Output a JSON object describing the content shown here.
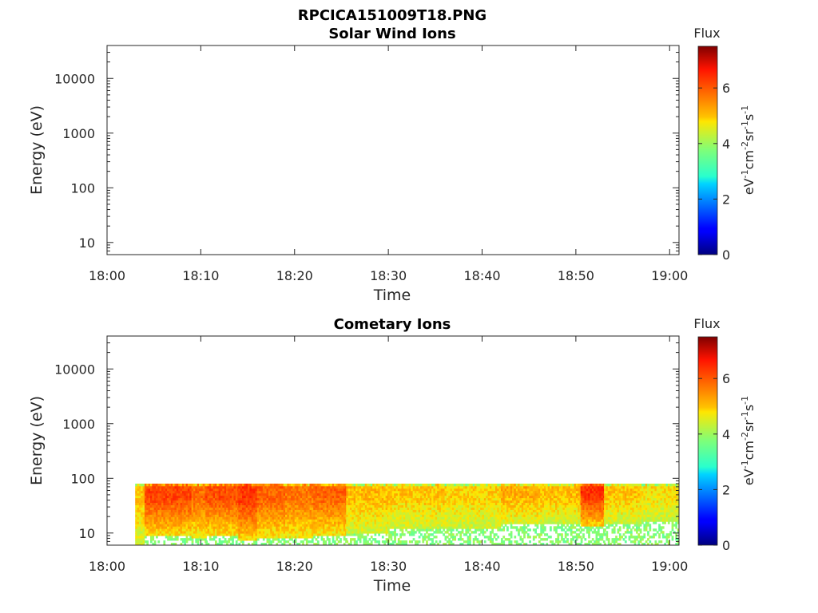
{
  "figure": {
    "title": "RPCICA151009T18.PNG"
  },
  "chart_data": [
    {
      "type": "heatmap",
      "title": "Solar Wind Ions",
      "xlabel": "Time",
      "ylabel": "Energy (eV)",
      "y_scale": "log",
      "xlim": [
        "18:00",
        "19:01"
      ],
      "ylim": [
        6,
        40000
      ],
      "x_ticks": [
        "18:00",
        "18:10",
        "18:20",
        "18:30",
        "18:40",
        "18:50",
        "19:00"
      ],
      "y_ticks": [
        "10",
        "100",
        "1000",
        "10000"
      ],
      "colorbar": {
        "title": "Flux",
        "label": "eV-1cm-2sr-1s-1",
        "range": [
          0,
          7.5
        ],
        "ticks": [
          "0",
          "2",
          "4",
          "6"
        ],
        "colormap": "jet"
      },
      "data_note": "no flux data plotted",
      "segments": []
    },
    {
      "type": "heatmap",
      "title": "Cometary Ions",
      "xlabel": "Time",
      "ylabel": "Energy (eV)",
      "y_scale": "log",
      "xlim": [
        "18:00",
        "19:01"
      ],
      "ylim": [
        6,
        40000
      ],
      "x_ticks": [
        "18:00",
        "18:10",
        "18:20",
        "18:30",
        "18:40",
        "18:50",
        "19:00"
      ],
      "y_ticks": [
        "10",
        "100",
        "1000",
        "10000"
      ],
      "colorbar": {
        "title": "Flux",
        "label": "eV-1cm-2sr-1s-1",
        "range": [
          0,
          7.5
        ],
        "ticks": [
          "0",
          "2",
          "4",
          "6"
        ],
        "colormap": "jet"
      },
      "data_start": "18:03",
      "data_end": "19:01",
      "energy_range": [
        6,
        80
      ],
      "segments": [
        {
          "t_start": 3.0,
          "t_end": 4.0,
          "peak_flux": 5.0,
          "low_energy": 6
        },
        {
          "t_start": 4.0,
          "t_end": 9.0,
          "peak_flux": 6.2,
          "low_energy": 9
        },
        {
          "t_start": 9.0,
          "t_end": 10.5,
          "peak_flux": 5.8,
          "low_energy": 8
        },
        {
          "t_start": 10.5,
          "t_end": 14.0,
          "peak_flux": 6.1,
          "low_energy": 9
        },
        {
          "t_start": 14.0,
          "t_end": 16.0,
          "peak_flux": 6.3,
          "low_energy": 7
        },
        {
          "t_start": 16.0,
          "t_end": 19.0,
          "peak_flux": 5.9,
          "low_energy": 8
        },
        {
          "t_start": 19.0,
          "t_end": 22.0,
          "peak_flux": 5.7,
          "low_energy": 8
        },
        {
          "t_start": 22.0,
          "t_end": 25.5,
          "peak_flux": 5.9,
          "low_energy": 9
        },
        {
          "t_start": 25.5,
          "t_end": 30.0,
          "peak_flux": 5.1,
          "low_energy": 10
        },
        {
          "t_start": 30.0,
          "t_end": 36.0,
          "peak_flux": 5.0,
          "low_energy": 12
        },
        {
          "t_start": 36.0,
          "t_end": 42.0,
          "peak_flux": 4.9,
          "low_energy": 12
        },
        {
          "t_start": 42.0,
          "t_end": 46.0,
          "peak_flux": 5.2,
          "low_energy": 14
        },
        {
          "t_start": 46.0,
          "t_end": 50.5,
          "peak_flux": 5.1,
          "low_energy": 15
        },
        {
          "t_start": 50.5,
          "t_end": 53.0,
          "peak_flux": 6.4,
          "low_energy": 13
        },
        {
          "t_start": 53.0,
          "t_end": 57.0,
          "peak_flux": 5.0,
          "low_energy": 15
        },
        {
          "t_start": 57.0,
          "t_end": 61.0,
          "peak_flux": 4.8,
          "low_energy": 16
        }
      ]
    }
  ]
}
